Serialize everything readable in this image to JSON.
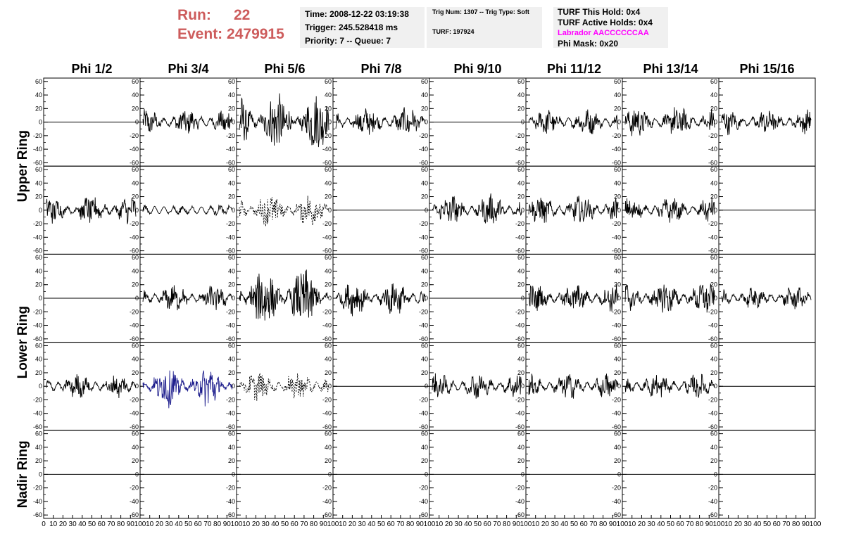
{
  "header": {
    "run_label": "Run:",
    "run_value": "22",
    "event_label": "Event:",
    "event_value": "2479915"
  },
  "info_box_1": {
    "time": "Time: 2008-12-22 03:19:38",
    "trigger": "Trigger: 245.528418 ms",
    "priority": "Priority: 7 -- Queue: 7"
  },
  "info_box_2": {
    "trig": "Trig Num: 1307 -- Trig Type: Soft",
    "turf": "TURF: 197924"
  },
  "info_box_3": {
    "hold": "TURF This Hold: 0x4",
    "active": "TURF Active Holds: 0x4",
    "labrador": "Labrador AACCCCCCAA",
    "phimask": "Phi Mask: 0x20",
    "labrador_color": "#ff00ff"
  },
  "chart_data": {
    "type": "line",
    "columns": [
      "Phi 1/2",
      "Phi 3/4",
      "Phi 5/6",
      "Phi 7/8",
      "Phi 9/10",
      "Phi 11/12",
      "Phi 13/14",
      "Phi 15/16"
    ],
    "ring_labels": [
      {
        "name": "Upper Ring",
        "rows": [
          0,
          1
        ]
      },
      {
        "name": "Lower Ring",
        "rows": [
          2,
          3
        ]
      },
      {
        "name": "Nadir Ring",
        "rows": [
          4
        ]
      }
    ],
    "ylim": [
      -65,
      65
    ],
    "yticks": [
      -60,
      -40,
      -20,
      0,
      20,
      40,
      60
    ],
    "xlim": [
      0,
      100
    ],
    "xticks": [
      0,
      10,
      20,
      30,
      40,
      50,
      60,
      70,
      80,
      90,
      100
    ],
    "line_color": "#000000",
    "highlight_color": "#1c1c8c",
    "note": "",
    "panels": [
      [
        {
          "amp": 0,
          "style": "flat"
        },
        {
          "amp": 16,
          "style": "noise"
        },
        {
          "amp": 40,
          "style": "noise"
        },
        {
          "amp": 18,
          "style": "noise"
        },
        {
          "amp": 0,
          "style": "flat"
        },
        {
          "amp": 16,
          "style": "noise"
        },
        {
          "amp": 20,
          "style": "noise"
        },
        {
          "amp": 15,
          "style": "noise"
        }
      ],
      [
        {
          "amp": 18,
          "style": "noise"
        },
        {
          "amp": 4,
          "style": "noise"
        },
        {
          "amp": 22,
          "style": "dashed"
        },
        {
          "amp": 0,
          "style": "flat"
        },
        {
          "amp": 20,
          "style": "noise"
        },
        {
          "amp": 18,
          "style": "noise"
        },
        {
          "amp": 15,
          "style": "noise"
        },
        {
          "amp": 0,
          "style": "flat"
        }
      ],
      [
        {
          "amp": 0,
          "style": "flat"
        },
        {
          "amp": 16,
          "style": "noise"
        },
        {
          "amp": 42,
          "style": "noise"
        },
        {
          "amp": 22,
          "style": "noise"
        },
        {
          "amp": 0,
          "style": "flat"
        },
        {
          "amp": 18,
          "style": "noise"
        },
        {
          "amp": 22,
          "style": "noise"
        },
        {
          "amp": 14,
          "style": "noise"
        }
      ],
      [
        {
          "amp": 14,
          "style": "noise"
        },
        {
          "amp": 28,
          "style": "highlight"
        },
        {
          "amp": 18,
          "style": "dashed"
        },
        {
          "amp": 0,
          "style": "flat"
        },
        {
          "amp": 16,
          "style": "noise"
        },
        {
          "amp": 16,
          "style": "noise"
        },
        {
          "amp": 15,
          "style": "noise"
        },
        {
          "amp": 0,
          "style": "flat"
        }
      ],
      [
        {
          "amp": 0,
          "style": "flat"
        },
        {
          "amp": 0,
          "style": "flat"
        },
        {
          "amp": 0,
          "style": "flat"
        },
        {
          "amp": 0,
          "style": "flat"
        },
        {
          "amp": 0,
          "style": "flat"
        },
        {
          "amp": 0,
          "style": "flat"
        },
        {
          "amp": 0,
          "style": "flat"
        },
        {
          "amp": 0,
          "style": "flat"
        }
      ]
    ]
  }
}
